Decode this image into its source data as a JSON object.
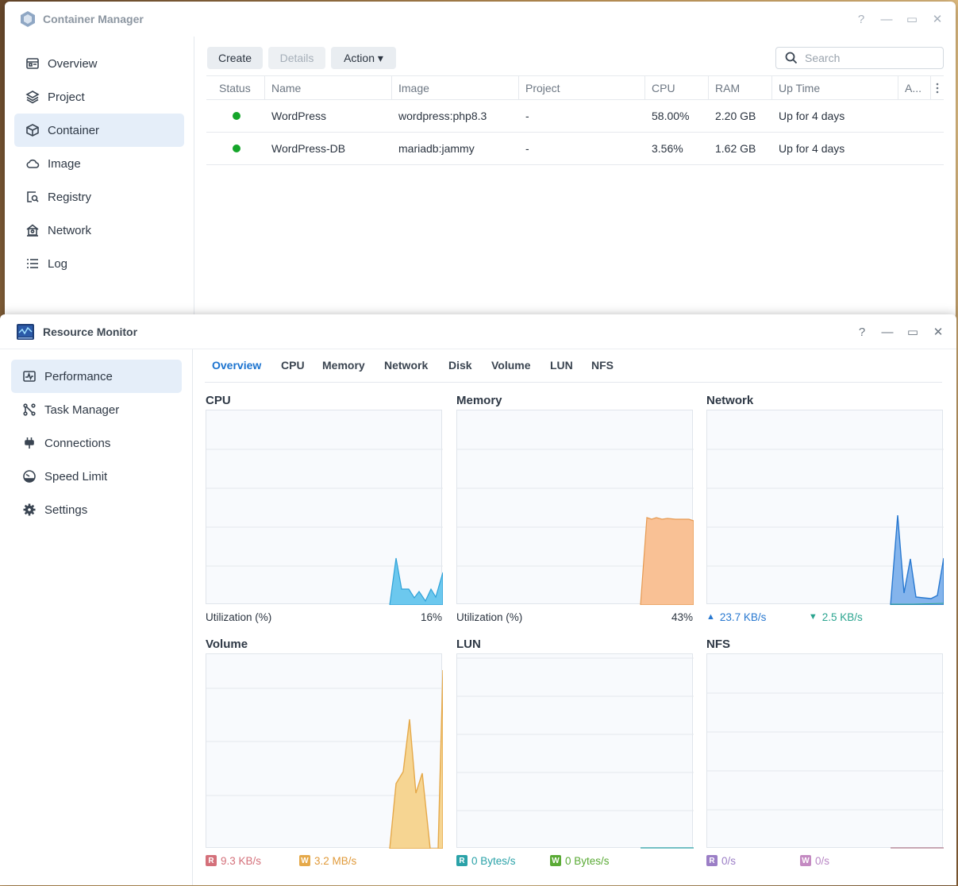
{
  "container_manager": {
    "title": "Container Manager",
    "controls": [
      "?",
      "—",
      "▭",
      "✕"
    ],
    "sidebar": [
      {
        "label": "Overview",
        "icon": "overview-icon"
      },
      {
        "label": "Project",
        "icon": "layers-icon"
      },
      {
        "label": "Container",
        "icon": "cube-icon",
        "selected": true
      },
      {
        "label": "Image",
        "icon": "cloud-icon"
      },
      {
        "label": "Registry",
        "icon": "registry-icon"
      },
      {
        "label": "Network",
        "icon": "network-icon"
      },
      {
        "label": "Log",
        "icon": "list-icon"
      }
    ],
    "toolbar": {
      "create": "Create",
      "details": "Details",
      "action": "Action ▾"
    },
    "search_placeholder": "Search",
    "columns": [
      "Status",
      "Name",
      "Image",
      "Project",
      "CPU",
      "RAM",
      "Up Time",
      "A..."
    ],
    "rows": [
      {
        "name": "WordPress",
        "image": "wordpress:php8.3",
        "project": "-",
        "cpu": "58.00%",
        "ram": "2.20 GB",
        "uptime": "Up for 4 days"
      },
      {
        "name": "WordPress-DB",
        "image": "mariadb:jammy",
        "project": "-",
        "cpu": "3.56%",
        "ram": "1.62 GB",
        "uptime": "Up for 4 days"
      }
    ]
  },
  "resource_monitor": {
    "title": "Resource Monitor",
    "controls": [
      "?",
      "—",
      "▭",
      "✕"
    ],
    "sidebar": [
      {
        "label": "Performance",
        "icon": "performance-icon",
        "selected": true
      },
      {
        "label": "Task Manager",
        "icon": "task-manager-icon"
      },
      {
        "label": "Connections",
        "icon": "plug-icon"
      },
      {
        "label": "Speed Limit",
        "icon": "gauge-icon"
      },
      {
        "label": "Settings",
        "icon": "gear-icon"
      }
    ],
    "tabs": [
      "Overview",
      "CPU",
      "Memory",
      "Network",
      "Disk",
      "Volume",
      "LUN",
      "NFS"
    ],
    "panels": {
      "cpu": {
        "title": "CPU",
        "label": "Utilization  (%)",
        "value": "16%"
      },
      "memory": {
        "title": "Memory",
        "label": "Utilization  (%)",
        "value": "43%"
      },
      "network": {
        "title": "Network",
        "up": "23.7 KB/s",
        "down": "2.5 KB/s"
      },
      "volume": {
        "title": "Volume",
        "r_badge": "R",
        "r": "9.3 KB/s",
        "w_badge": "W",
        "w": "3.2 MB/s"
      },
      "lun": {
        "title": "LUN",
        "r_badge": "R",
        "r": "0 Bytes/s",
        "w_badge": "W",
        "w": "0 Bytes/s"
      },
      "nfs": {
        "title": "NFS",
        "r_badge": "R",
        "r": "0/s",
        "w_badge": "W",
        "w": "0/s"
      }
    },
    "colors": {
      "cpu": "#2fa2d8",
      "memory": "#e69a52",
      "network_up": "#2878d0",
      "network_down": "#2aa48f",
      "volume": "#e5a94a",
      "read": "#d4707a",
      "write": "#e09a3a",
      "lun_read": "#2aa2a8",
      "lun_write": "#5aaa35",
      "nfs": "#9b7ec6"
    }
  }
}
